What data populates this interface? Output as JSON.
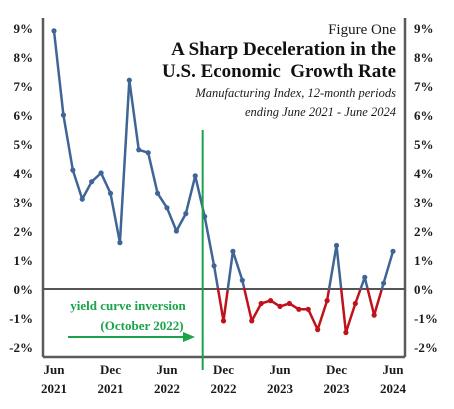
{
  "chart_data": {
    "type": "line",
    "figure_label": "Figure One",
    "title_line1": "A Sharp Deceleration in the",
    "title_line2": "U.S. Economic  Growth Rate",
    "subtitle_line1": "Manufacturing Index, 12-month periods",
    "subtitle_line2": "ending June 2021 - June 2024",
    "annotation": {
      "line1": "yield curve inversion",
      "line2": "(October 2022)",
      "x_index": 16,
      "color": "#1aa34a"
    },
    "ylim": [
      -2,
      9
    ],
    "y_ticks": [
      {
        "value": 9,
        "label": "9%"
      },
      {
        "value": 8,
        "label": "8%"
      },
      {
        "value": 7,
        "label": "7%"
      },
      {
        "value": 6,
        "label": "6%"
      },
      {
        "value": 5,
        "label": "5%"
      },
      {
        "value": 4,
        "label": "4%"
      },
      {
        "value": 3,
        "label": "3%"
      },
      {
        "value": 2,
        "label": "2%"
      },
      {
        "value": 1,
        "label": "1%"
      },
      {
        "value": 0,
        "label": "0%"
      },
      {
        "value": -1,
        "label": "-1%"
      },
      {
        "value": -2,
        "label": "-2%"
      }
    ],
    "x_ticks": [
      {
        "index": 0,
        "month": "Jun",
        "year": "2021"
      },
      {
        "index": 6,
        "month": "Dec",
        "year": "2021"
      },
      {
        "index": 12,
        "month": "Jun",
        "year": "2022"
      },
      {
        "index": 18,
        "month": "Dec",
        "year": "2022"
      },
      {
        "index": 24,
        "month": "Jun",
        "year": "2023"
      },
      {
        "index": 30,
        "month": "Dec",
        "year": "2023"
      },
      {
        "index": 36,
        "month": "Jun",
        "year": "2024"
      }
    ],
    "x_count": 37,
    "positive_color": "#3f6596",
    "negative_color": "#c0121b",
    "series": [
      {
        "values": [
          8.9,
          6.0,
          4.1,
          3.1,
          3.7,
          4.0,
          3.3,
          1.6,
          7.2,
          4.8,
          4.7,
          3.3,
          2.8,
          2.0,
          2.6,
          3.9,
          2.5,
          0.8,
          -1.1,
          1.3,
          0.3,
          -1.1,
          -0.5,
          -0.4,
          -0.6,
          -0.5,
          -0.7,
          -0.7,
          -1.4,
          -0.4,
          1.5,
          -1.5,
          -0.5,
          0.4,
          -0.9,
          0.2,
          1.3
        ]
      }
    ],
    "grid": false,
    "legend": "none"
  }
}
